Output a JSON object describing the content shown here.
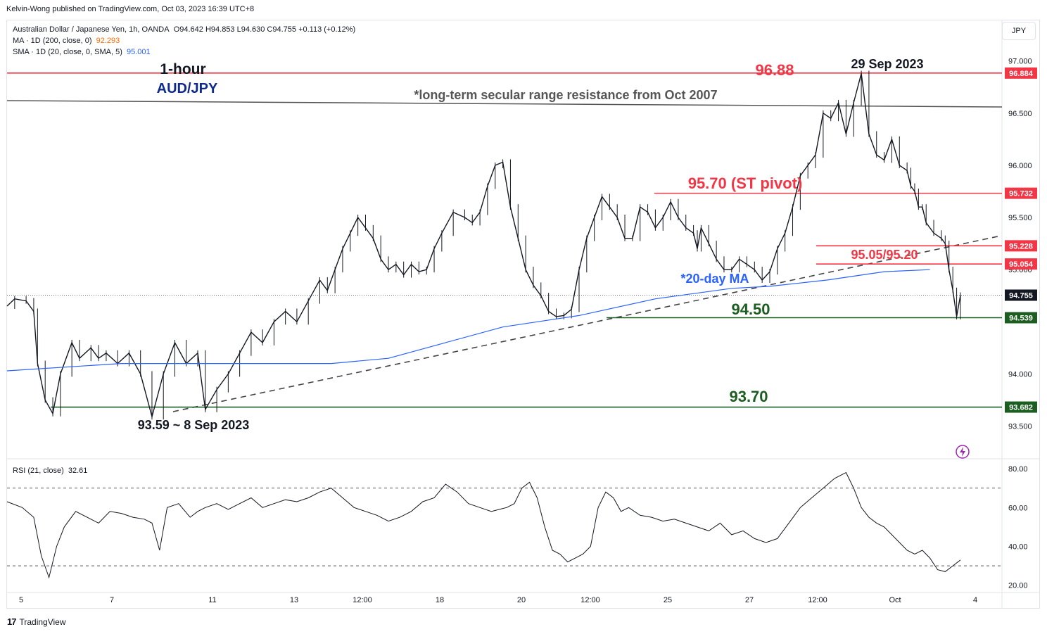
{
  "header": {
    "publisher": "Kelvin-Wong published on TradingView.com, Oct 03, 2023 16:39 UTC+8",
    "symbol_line": "Australian Dollar / Japanese Yen, 1h, OANDA",
    "ohlc": "O94.642  H94.853  L94.630  C94.755  +0.113 (+0.12%)",
    "ma_line": "MA · 1D (200, close, 0)",
    "ma_value": "92.293",
    "sma_line": "SMA · 1D (20, close, 0, SMA, 5)",
    "sma_value": "95.001",
    "currency": "JPY"
  },
  "rsi_header": {
    "label": "RSI (21, close)",
    "value": "32.61"
  },
  "footer": {
    "brand": "TradingView",
    "logo": "17"
  },
  "colors": {
    "candle": "#131722",
    "sma": "#2962ff",
    "resistance": "#f23645",
    "support": "#1b5e20",
    "annotation_red": "#f23645",
    "annotation_green": "#1b5e20",
    "annotation_blue": "#2962ff",
    "annotation_navy": "#0d2a8c",
    "secular": "#555555"
  },
  "chart_data": [
    {
      "type": "line",
      "title": "1-hour",
      "subtitle": "AUD/JPY",
      "x_ticks": [
        "5",
        "7",
        "11",
        "13",
        "12:00",
        "18",
        "20",
        "12:00",
        "25",
        "27",
        "12:00",
        "Oct",
        "4"
      ],
      "y_ticks": [
        "93.500",
        "94.000",
        "95.000",
        "95.500",
        "96.000",
        "96.500",
        "97.000"
      ],
      "ylim": [
        93.2,
        97.2
      ],
      "series": [
        {
          "name": "AUD/JPY",
          "x": [
            0,
            2,
            5,
            7,
            8,
            10,
            12,
            14,
            17,
            19,
            22,
            24,
            26,
            29,
            32,
            35,
            38,
            41,
            44,
            47,
            50,
            52,
            55,
            58,
            61,
            64,
            67,
            70,
            73,
            76,
            79,
            82,
            84,
            86,
            88,
            90,
            92,
            94,
            96,
            98,
            100,
            102,
            104,
            106,
            108,
            110,
            112,
            114,
            117,
            120,
            122,
            124,
            126,
            128,
            130,
            132,
            134,
            136,
            138,
            140,
            142,
            144,
            146,
            148,
            150,
            152,
            154,
            156,
            158,
            160,
            162,
            164,
            166,
            168,
            170,
            172,
            174,
            176,
            178,
            180,
            181,
            182,
            184,
            186,
            188,
            190,
            192,
            194,
            196,
            198,
            200,
            202,
            204,
            206,
            208,
            210,
            212,
            214,
            216,
            218,
            220,
            222,
            224,
            226,
            228,
            230,
            232,
            234,
            236,
            237,
            238,
            239,
            240,
            241,
            243,
            245,
            246,
            247,
            248,
            249,
            250
          ],
          "y": [
            94.65,
            94.72,
            94.7,
            94.6,
            94.1,
            93.75,
            93.62,
            94.0,
            94.3,
            94.15,
            94.25,
            94.15,
            94.2,
            94.1,
            94.2,
            94.0,
            93.59,
            94.0,
            94.3,
            94.1,
            94.2,
            93.66,
            93.85,
            94.0,
            94.2,
            94.4,
            94.3,
            94.5,
            94.6,
            94.5,
            94.7,
            94.9,
            94.8,
            95.0,
            95.2,
            95.35,
            95.5,
            95.4,
            95.3,
            95.1,
            95.0,
            95.05,
            94.95,
            95.05,
            94.98,
            95.0,
            95.2,
            95.35,
            95.55,
            95.5,
            95.45,
            95.55,
            95.8,
            96.0,
            96.03,
            95.6,
            95.3,
            95.0,
            94.85,
            94.75,
            94.6,
            94.55,
            94.56,
            94.62,
            95.0,
            95.3,
            95.5,
            95.7,
            95.6,
            95.5,
            95.3,
            95.3,
            95.6,
            95.55,
            95.4,
            95.5,
            95.65,
            95.5,
            95.4,
            95.35,
            95.2,
            95.4,
            95.25,
            95.1,
            95.0,
            95.0,
            95.1,
            95.05,
            95.0,
            94.9,
            94.98,
            95.2,
            95.35,
            95.6,
            95.9,
            96.0,
            96.1,
            96.5,
            96.45,
            96.6,
            96.3,
            96.6,
            96.88,
            96.3,
            96.1,
            96.05,
            96.25,
            96.0,
            95.95,
            95.8,
            95.75,
            95.6,
            95.6,
            95.45,
            95.35,
            95.3,
            95.25,
            95.0,
            94.8,
            94.55,
            94.755
          ]
        },
        {
          "name": "20-day MA",
          "x": [
            0,
            30,
            60,
            85,
            100,
            115,
            130,
            150,
            170,
            190,
            200,
            215,
            230,
            242
          ],
          "y": [
            94.03,
            94.1,
            94.1,
            94.1,
            94.15,
            94.3,
            94.45,
            94.56,
            94.72,
            94.82,
            94.84,
            94.9,
            94.98,
            95.0
          ]
        }
      ],
      "horizontal_levels": [
        {
          "value": 96.884,
          "axis_label": "96.884"
        },
        {
          "value": 95.732,
          "axis_label": "95.732"
        },
        {
          "value": 95.228,
          "axis_label": "95.228"
        },
        {
          "value": 95.054,
          "axis_label": "95.054"
        },
        {
          "value": 94.539,
          "axis_label": "94.539"
        },
        {
          "value": 93.682,
          "axis_label": "93.682"
        }
      ],
      "last_price": {
        "value": 94.755,
        "axis_label": "94.755"
      },
      "annotations": {
        "a9688": "96.88",
        "top_date": "29 Sep 2023",
        "secular": "*long-term secular range resistance from Oct 2007",
        "pivot": "95.70 (ST pivot)",
        "p9505": "95.05/95.20",
        "ma20": "*20-day MA",
        "s9450": "94.50",
        "s9370": "93.70",
        "low": "93.59 ~ 8 Sep 2023"
      }
    },
    {
      "type": "line",
      "title": "RSI (21, close)",
      "y_ticks": [
        "20.00",
        "40.00",
        "60.00",
        "80.00"
      ],
      "ylim": [
        17,
        84
      ],
      "guides": [
        30,
        70
      ],
      "series": [
        {
          "name": "RSI (21, close)",
          "x": [
            0,
            4,
            7,
            9,
            11,
            13,
            15,
            18,
            21,
            24,
            27,
            30,
            33,
            36,
            38,
            40,
            42,
            45,
            48,
            50,
            52,
            55,
            58,
            61,
            64,
            67,
            70,
            73,
            76,
            79,
            82,
            85,
            88,
            91,
            94,
            97,
            100,
            103,
            106,
            109,
            112,
            115,
            118,
            121,
            124,
            127,
            129,
            131,
            133,
            135,
            137,
            139,
            141,
            143,
            145,
            147,
            149,
            151,
            153,
            155,
            157,
            159,
            161,
            163,
            166,
            169,
            172,
            175,
            178,
            181,
            184,
            187,
            190,
            193,
            196,
            199,
            202,
            205,
            208,
            211,
            214,
            217,
            220,
            222,
            224,
            226,
            228,
            230,
            232,
            234,
            236,
            238,
            240,
            242,
            244,
            246,
            248,
            250
          ],
          "y": [
            63,
            60,
            55,
            35,
            24,
            40,
            50,
            58,
            55,
            52,
            58,
            57,
            55,
            54,
            52,
            38,
            60,
            62,
            55,
            58,
            60,
            62,
            59,
            62,
            65,
            60,
            62,
            64,
            63,
            65,
            68,
            70,
            65,
            60,
            58,
            56,
            53,
            55,
            58,
            63,
            65,
            72,
            68,
            62,
            60,
            58,
            59,
            60,
            62,
            70,
            73,
            65,
            50,
            38,
            36,
            32,
            34,
            36,
            40,
            60,
            68,
            65,
            58,
            60,
            56,
            55,
            53,
            54,
            52,
            50,
            48,
            52,
            46,
            48,
            44,
            42,
            44,
            52,
            60,
            65,
            70,
            75,
            78,
            70,
            60,
            55,
            52,
            50,
            46,
            42,
            38,
            36,
            38,
            34,
            28,
            27,
            30,
            33
          ]
        }
      ]
    }
  ]
}
